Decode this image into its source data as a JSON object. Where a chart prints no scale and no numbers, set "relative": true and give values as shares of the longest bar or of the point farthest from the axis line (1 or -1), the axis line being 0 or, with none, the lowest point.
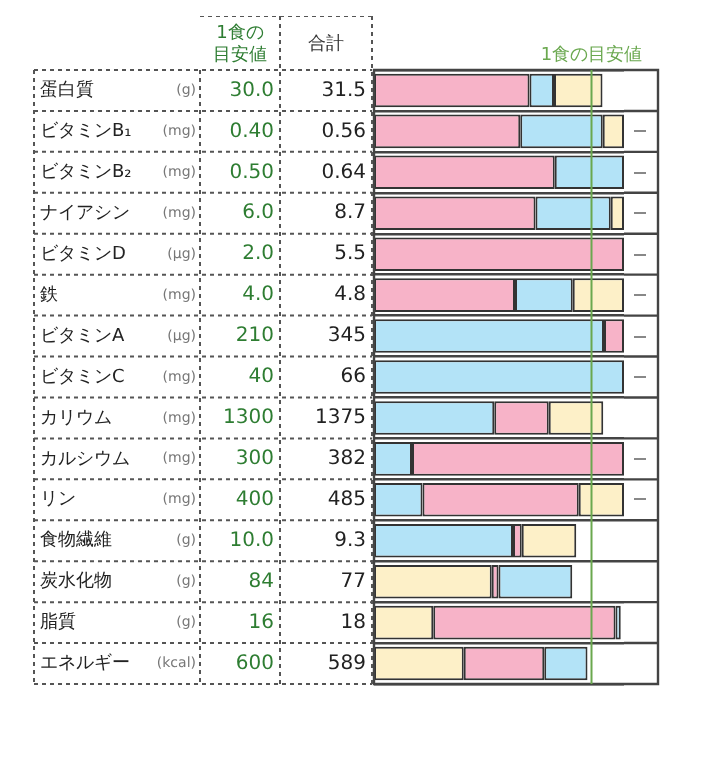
{
  "chart_data": {
    "type": "bar",
    "orientation": "horizontal",
    "stacked": true,
    "relative": true,
    "grid": "y",
    "legend": false,
    "categories": [
      "蛋白質",
      "ビタミンB₁",
      "ビタミンB₂",
      "ナイアシン",
      "ビタミンD",
      "鉄",
      "ビタミンA",
      "ビタミンC",
      "カリウム",
      "カルシウム",
      "リン",
      "食物繊維",
      "炭水化物",
      "脂質",
      "エネルギー"
    ],
    "series": [
      {
        "values": [
          0.622,
          0.585,
          0.723,
          0.646,
          1,
          0.564,
          0.92,
          1,
          0.481,
          0.152,
          0.194,
          0.556,
          0.471,
          0.237,
          0.359
        ],
        "colors": [
          "#f7b3c8",
          "#f7b3c8",
          "#f7b3c8",
          "#f7b3c8",
          "#f7b3c8",
          "#f7b3c8",
          "#b3e3f7",
          "#b3e3f7",
          "#b3e3f7",
          "#b3e3f7",
          "#b3e3f7",
          "#b3e3f7",
          "#fdf0c8",
          "#fdf0c8",
          "#fdf0c8"
        ]
      },
      {
        "values": [
          0.098,
          0.33,
          0.277,
          0.301,
          null,
          0.231,
          0.08,
          null,
          0.218,
          0.848,
          0.625,
          0.035,
          0.027,
          0.729,
          0.322
        ],
        "colors": [
          "#b3e3f7",
          "#b3e3f7",
          "#b3e3f7",
          "#b3e3f7",
          null,
          "#b3e3f7",
          "#f7b3c8",
          null,
          "#f7b3c8",
          "#f7b3c8",
          "#f7b3c8",
          "#f7b3c8",
          "#f7b3c8",
          "#f7b3c8",
          "#f7b3c8"
        ]
      },
      {
        "values": [
          0.194,
          0.085,
          null,
          0.053,
          null,
          0.205,
          null,
          null,
          0.218,
          null,
          0.181,
          0.218,
          0.295,
          0.021,
          0.173
        ],
        "colors": [
          "#fdf0c8",
          "#fdf0c8",
          null,
          "#fdf0c8",
          null,
          "#fdf0c8",
          null,
          null,
          "#fdf0c8",
          null,
          "#fdf0c8",
          "#fdf0c8",
          "#b3e3f7",
          "#b3e3f7",
          "#b3e3f7"
        ]
      }
    ],
    "ref_lines": [
      {
        "axis": "x",
        "value": 0.87,
        "label": "1食の目安値",
        "color": "#6aa84f"
      }
    ],
    "annotations": [
      "1食の目安値",
      "合計",
      "(g)",
      "30.0",
      "31.5",
      "(mg)",
      "0.40",
      "0.56",
      "(mg)",
      "0.50",
      "0.64",
      "(mg)",
      "6.0",
      "8.7",
      "(μg)",
      "2.0",
      "5.5",
      "(mg)",
      "4.0",
      "4.8",
      "(μg)",
      "210",
      "345",
      "(mg)",
      "40",
      "66",
      "(mg)",
      "1300",
      "1375",
      "(mg)",
      "300",
      "382",
      "(mg)",
      "400",
      "485",
      "(g)",
      "10.0",
      "9.3",
      "(g)",
      "84",
      "77",
      "(g)",
      "16",
      "18",
      "(kcal)",
      "600",
      "589"
    ]
  }
}
